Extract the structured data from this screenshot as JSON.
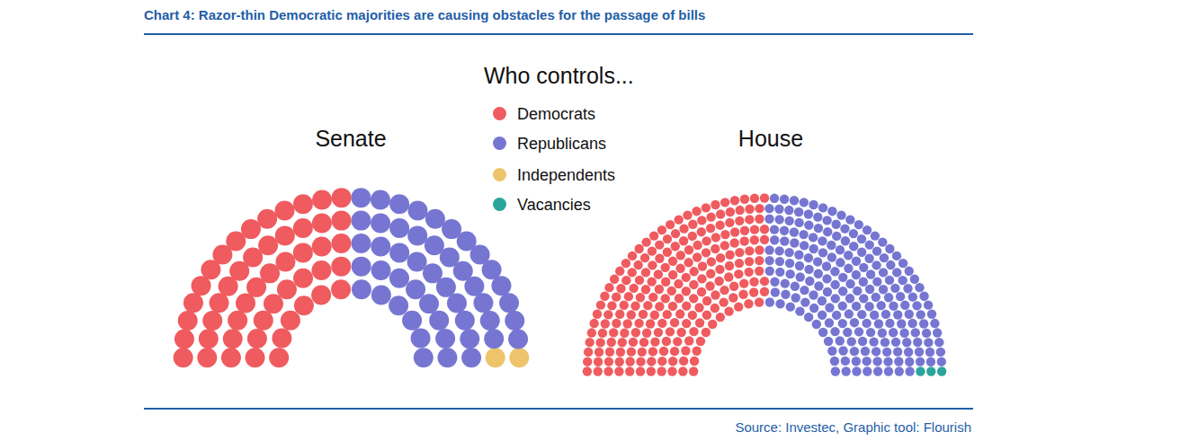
{
  "title": "Chart 4: Razor-thin Democratic majorities are causing obstacles for the passage of bills",
  "legend_title": "Who controls...",
  "source": "Source: Investec, Graphic tool: Flourish",
  "chart_data": [
    {
      "type": "parliament",
      "title": "Senate",
      "categories": [
        "Democrats",
        "Republicans",
        "Independents",
        "Vacancies"
      ],
      "values": [
        50,
        48,
        2,
        0
      ],
      "colors": [
        "#ef5b5f",
        "#7676d2",
        "#edc46b",
        "#2ba59c"
      ]
    },
    {
      "type": "parliament",
      "title": "House",
      "categories": [
        "Democrats",
        "Republicans",
        "Independents",
        "Vacancies"
      ],
      "values": [
        220,
        212,
        0,
        3
      ],
      "colors": [
        "#ef5b5f",
        "#7676d2",
        "#edc46b",
        "#2ba59c"
      ]
    }
  ]
}
